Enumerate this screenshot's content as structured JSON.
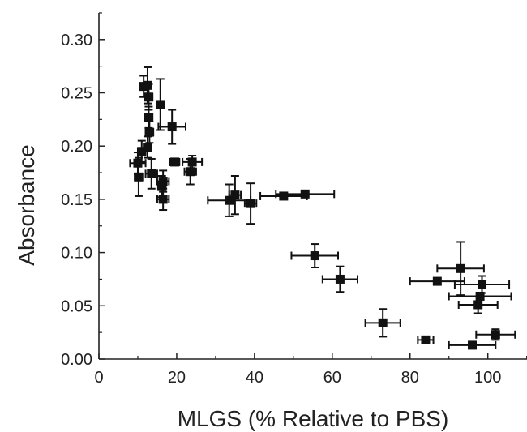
{
  "chart_data": {
    "type": "scatter",
    "title": "",
    "xlabel": "MLGS (% Relative to PBS)",
    "ylabel": "Absorbance",
    "xlim": [
      0,
      110
    ],
    "ylim": [
      0,
      0.33
    ],
    "x_ticks": [
      "0",
      "20",
      "40",
      "60",
      "80",
      "100"
    ],
    "y_ticks": [
      "0.00",
      "0.05",
      "0.10",
      "0.15",
      "0.20",
      "0.25",
      "0.30"
    ],
    "grid": false,
    "marker": "square",
    "color": "#111111",
    "points": [
      {
        "x": 11.5,
        "y": 0.256,
        "xerr": 1.0,
        "yerr": 0.01
      },
      {
        "x": 12.5,
        "y": 0.257,
        "xerr": 1.0,
        "yerr": 0.017
      },
      {
        "x": 12.8,
        "y": 0.246,
        "xerr": 1.0,
        "yerr": 0.012
      },
      {
        "x": 15.8,
        "y": 0.239,
        "xerr": 1.0,
        "yerr": 0.024
      },
      {
        "x": 12.8,
        "y": 0.227,
        "xerr": 1.0,
        "yerr": 0.01
      },
      {
        "x": 13.0,
        "y": 0.213,
        "xerr": 1.0,
        "yerr": 0.01
      },
      {
        "x": 18.8,
        "y": 0.218,
        "xerr": 3.5,
        "yerr": 0.016
      },
      {
        "x": 12.5,
        "y": 0.199,
        "xerr": 1.0,
        "yerr": 0.01
      },
      {
        "x": 11.0,
        "y": 0.195,
        "xerr": 1.0,
        "yerr": 0.01
      },
      {
        "x": 10.0,
        "y": 0.184,
        "xerr": 2.0,
        "yerr": 0.01
      },
      {
        "x": 19.5,
        "y": 0.185,
        "xerr": 1.2,
        "yerr": 0.0
      },
      {
        "x": 24.0,
        "y": 0.185,
        "xerr": 2.5,
        "yerr": 0.006
      },
      {
        "x": 23.5,
        "y": 0.176,
        "xerr": 1.5,
        "yerr": 0.012
      },
      {
        "x": 10.2,
        "y": 0.171,
        "xerr": 1.0,
        "yerr": 0.018
      },
      {
        "x": 13.5,
        "y": 0.174,
        "xerr": 1.5,
        "yerr": 0.014
      },
      {
        "x": 16.5,
        "y": 0.167,
        "xerr": 1.5,
        "yerr": 0.01
      },
      {
        "x": 16.2,
        "y": 0.162,
        "xerr": 1.0,
        "yerr": 0.01
      },
      {
        "x": 16.5,
        "y": 0.15,
        "xerr": 1.5,
        "yerr": 0.01
      },
      {
        "x": 33.5,
        "y": 0.149,
        "xerr": 5.5,
        "yerr": 0.015
      },
      {
        "x": 35.0,
        "y": 0.154,
        "xerr": 1.5,
        "yerr": 0.018
      },
      {
        "x": 39.0,
        "y": 0.146,
        "xerr": 1.5,
        "yerr": 0.019
      },
      {
        "x": 47.5,
        "y": 0.153,
        "xerr": 6.0,
        "yerr": 0.003
      },
      {
        "x": 53.0,
        "y": 0.155,
        "xerr": 7.5,
        "yerr": 0.0
      },
      {
        "x": 55.5,
        "y": 0.097,
        "xerr": 6.0,
        "yerr": 0.011
      },
      {
        "x": 62.0,
        "y": 0.075,
        "xerr": 4.5,
        "yerr": 0.012
      },
      {
        "x": 73.0,
        "y": 0.034,
        "xerr": 4.5,
        "yerr": 0.013
      },
      {
        "x": 84.0,
        "y": 0.018,
        "xerr": 2.0,
        "yerr": 0.003
      },
      {
        "x": 87.0,
        "y": 0.073,
        "xerr": 7.0,
        "yerr": 0.0
      },
      {
        "x": 93.0,
        "y": 0.085,
        "xerr": 6.0,
        "yerr": 0.025
      },
      {
        "x": 98.5,
        "y": 0.07,
        "xerr": 7.0,
        "yerr": 0.008
      },
      {
        "x": 98.0,
        "y": 0.059,
        "xerr": 8.0,
        "yerr": 0.0
      },
      {
        "x": 97.5,
        "y": 0.051,
        "xerr": 5.0,
        "yerr": 0.008
      },
      {
        "x": 96.0,
        "y": 0.013,
        "xerr": 6.0,
        "yerr": 0.003
      },
      {
        "x": 102.0,
        "y": 0.023,
        "xerr": 5.0,
        "yerr": 0.005
      }
    ]
  }
}
